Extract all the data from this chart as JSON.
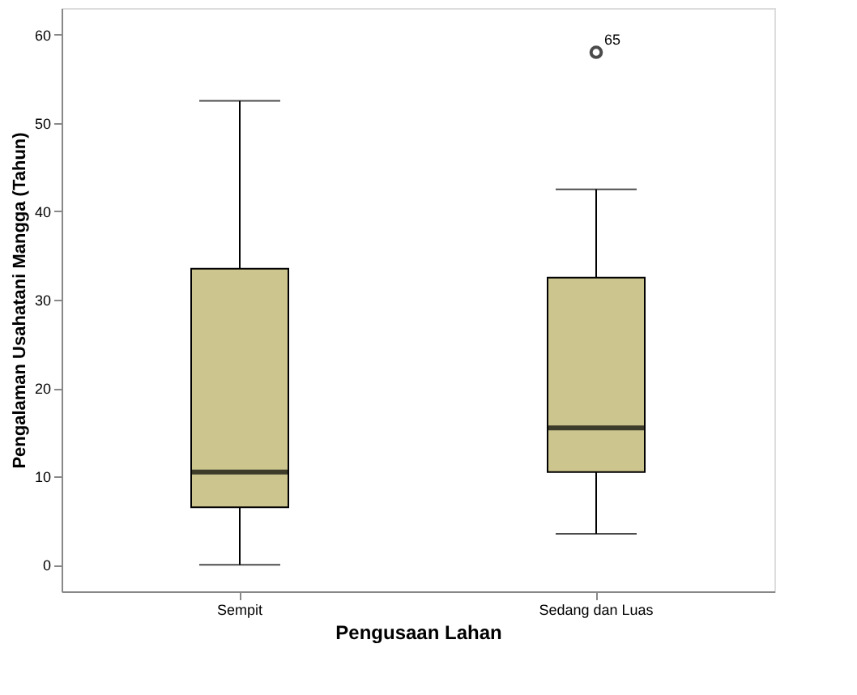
{
  "chart_data": {
    "type": "box",
    "xlabel": "Pengusaan Lahan",
    "ylabel": "Pengalaman Usahatani Mangga (Tahun)",
    "categories": [
      "Sempit",
      "Sedang dan Luas"
    ],
    "color": "#cdc58e",
    "boxes": [
      {
        "low": 0,
        "q1": 6.5,
        "median": 10.5,
        "q3": 33.5,
        "high": 52.5
      },
      {
        "low": 3.5,
        "q1": 10.5,
        "median": 15.5,
        "q3": 32.5,
        "high": 42.5,
        "outliers": [
          58
        ]
      }
    ],
    "annotations": [
      "65"
    ],
    "ylim": [
      -3,
      63
    ],
    "yticks": [
      0,
      10,
      20,
      30,
      40,
      50,
      60
    ],
    "grid": false
  }
}
